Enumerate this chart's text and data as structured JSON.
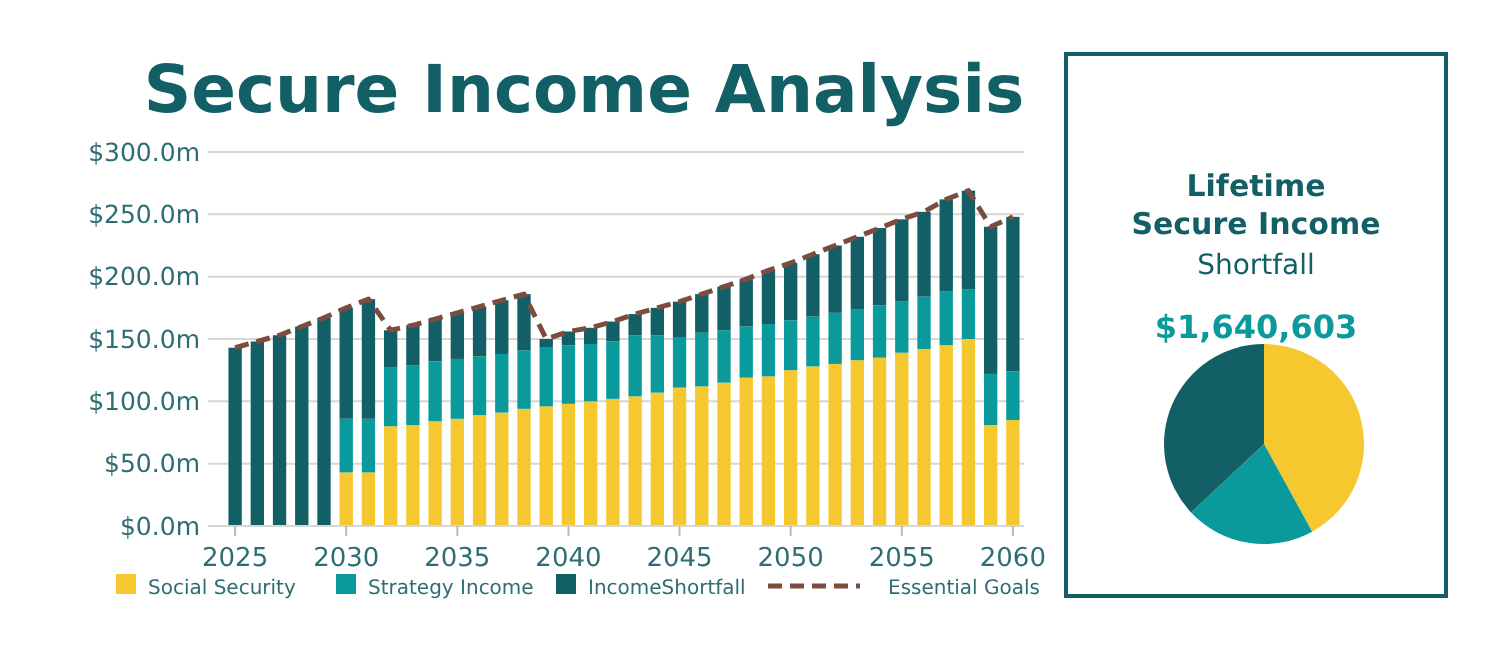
{
  "chart_data": [
    {
      "type": "bar",
      "title": "Secure Income Analysis",
      "stacked": true,
      "x": [
        2025,
        2026,
        2027,
        2028,
        2029,
        2030,
        2031,
        2032,
        2033,
        2034,
        2035,
        2036,
        2037,
        2038,
        2039,
        2040,
        2041,
        2042,
        2043,
        2044,
        2045,
        2046,
        2047,
        2048,
        2049,
        2050,
        2051,
        2052,
        2053,
        2054,
        2055,
        2056,
        2057,
        2058,
        2059,
        2060
      ],
      "series": [
        {
          "name": "Social Security",
          "color": "#f5c830",
          "values": [
            0,
            0,
            0,
            0,
            0,
            43,
            43,
            80,
            81,
            84,
            86,
            89,
            91,
            94,
            96,
            98,
            100,
            102,
            104,
            107,
            111,
            112,
            115,
            119,
            120,
            125,
            128,
            130,
            133,
            135,
            139,
            142,
            145,
            150,
            81,
            85
          ]
        },
        {
          "name": "Strategy Income",
          "color": "#0a9a9b",
          "values": [
            0,
            0,
            0,
            0,
            0,
            43,
            43,
            47,
            48,
            48,
            48,
            47,
            47,
            47,
            47,
            47,
            46,
            46,
            49,
            46,
            40,
            43,
            42,
            41,
            42,
            40,
            40,
            41,
            41,
            42,
            41,
            42,
            43,
            40,
            41,
            39
          ]
        },
        {
          "name": "IncomeShortfall",
          "color": "#135f66",
          "values": [
            143,
            148,
            153,
            160,
            167,
            89,
            96,
            30,
            32,
            34,
            37,
            40,
            43,
            45,
            7,
            11,
            13,
            16,
            17,
            22,
            29,
            31,
            35,
            38,
            43,
            46,
            50,
            54,
            58,
            62,
            66,
            68,
            74,
            79,
            118,
            124
          ]
        },
        {
          "name": "Essential Goals",
          "type": "line",
          "line_style": "dashed",
          "color": "#7b4c40",
          "values": [
            143,
            148,
            153,
            160,
            167,
            175,
            182,
            157,
            161,
            166,
            171,
            176,
            181,
            186,
            150,
            156,
            159,
            164,
            170,
            175,
            180,
            186,
            192,
            198,
            205,
            211,
            218,
            225,
            232,
            239,
            246,
            252,
            262,
            269,
            240,
            248
          ]
        }
      ],
      "xlim": [
        2024.5,
        2060.5
      ],
      "xticks": [
        2025,
        2030,
        2035,
        2040,
        2045,
        2050,
        2055,
        2060
      ],
      "ylim": [
        0,
        300
      ],
      "yticks": [
        {
          "value": 0,
          "label": "$0.0m"
        },
        {
          "value": 50,
          "label": "$50.0m"
        },
        {
          "value": 100,
          "label": "$100.0m"
        },
        {
          "value": 150,
          "label": "$150.0m"
        },
        {
          "value": 200,
          "label": "$200.0m"
        },
        {
          "value": 250,
          "label": "$250.0m"
        },
        {
          "value": 300,
          "label": "$300.0m"
        }
      ],
      "grid": "y",
      "legend": "bottom"
    },
    {
      "type": "pie",
      "title": "Lifetime Secure Income",
      "subtitle": "Shortfall",
      "annotations": [
        "$1,640,603"
      ],
      "categories": [
        null,
        null,
        null
      ],
      "values": [
        42,
        21,
        37
      ],
      "colors": [
        "#f5c830",
        "#0a9a9b",
        "#135f66"
      ]
    }
  ]
}
